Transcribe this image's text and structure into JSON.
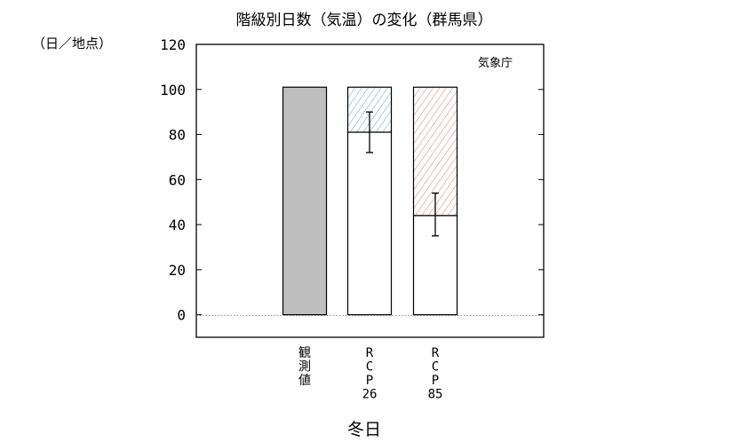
{
  "chart_data": {
    "type": "bar",
    "title": "階級別日数（気温）の変化（群馬県）",
    "ylabel": "（日／地点）",
    "xlabel": "冬日",
    "source": "気象庁",
    "ylim": [
      -10,
      120
    ],
    "yticks": [
      0,
      20,
      40,
      60,
      80,
      100,
      120
    ],
    "grid": false,
    "categories": [
      [
        "観",
        "測",
        "値"
      ],
      [
        "R",
        "C",
        "P",
        "26"
      ],
      [
        "R",
        "C",
        "P",
        "85"
      ]
    ],
    "bars": [
      {
        "base": 101,
        "base_fill": "#bebebe",
        "change_to": null,
        "hatch_color": null,
        "error": null
      },
      {
        "base": 81,
        "base_fill": "#ffffff",
        "change_to": 101,
        "hatch_color": "#5aa0c8",
        "error": [
          72,
          90
        ]
      },
      {
        "base": 44,
        "base_fill": "#ffffff",
        "change_to": 101,
        "hatch_color": "#d08070",
        "error": [
          35,
          54
        ]
      }
    ]
  }
}
